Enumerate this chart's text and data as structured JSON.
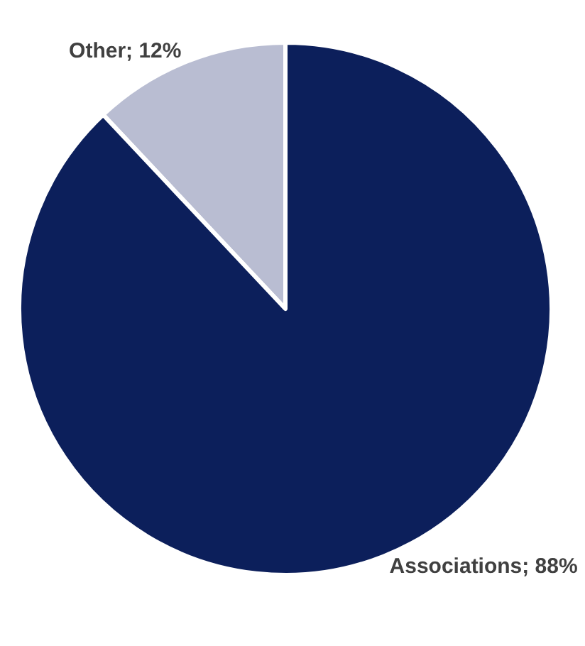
{
  "chart_data": {
    "type": "pie",
    "categories": [
      "Other",
      "Associations"
    ],
    "values": [
      12,
      88
    ],
    "colors": [
      "#b9bdd2",
      "#0c1f5b"
    ],
    "value_labels": [
      "12%",
      "88%"
    ],
    "legend": false
  }
}
